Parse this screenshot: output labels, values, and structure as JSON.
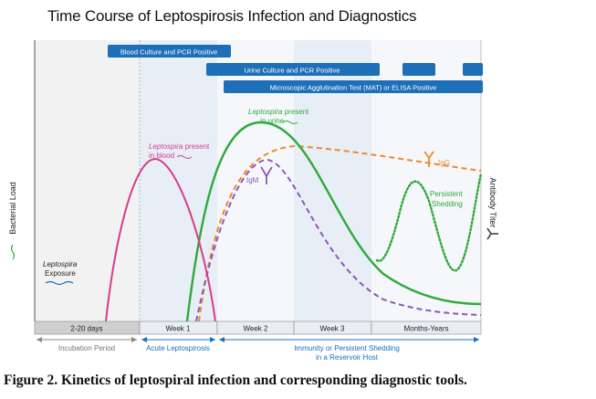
{
  "title": "Time Course of Leptospirosis Infection and Diagnostics",
  "caption": "Figure 2.  Kinetics of leptospiral infection and corresponding diagnostic tools.",
  "axes": {
    "left_label": "Bacterial Load",
    "right_label": "Antibody Titer"
  },
  "timeline": {
    "segments": [
      "2-20 days",
      "Week 1",
      "Week 2",
      "Week 3",
      "Months-Years"
    ]
  },
  "phases": {
    "incubation": "Incubation Period",
    "acute": "Acute Leptospirosis",
    "immunity_line1": "Immunity or Persistent Shedding",
    "immunity_line2": "in a Reservoir Host"
  },
  "diagnostics": {
    "blood_culture": "Blood Culture and PCR Positive",
    "urine_culture": "Urine Culture and PCR Positive",
    "mat_elisa": "Microscopic Agglutination Test (MAT) or ELISA Positive"
  },
  "annotations": {
    "blood_italic": "Leptospira",
    "blood_rest": " present",
    "blood_line2": "in blood",
    "urine_italic": "Leptospira",
    "urine_rest": " present",
    "urine_line2": "in urine",
    "igm": "IgM",
    "igg": "IgG",
    "shedding_line1": "Persistent",
    "shedding_line2": "Shedding",
    "exposure_line1": "Leptospira",
    "exposure_line2": "Exposure"
  },
  "colors": {
    "blood": "#d63d8c",
    "urine": "#2eaa3a",
    "igm": "#8a5bb5",
    "igg": "#ee8a2a",
    "bar": "#1d6fb8",
    "phase_text": "#1d6fb8",
    "incubation_text": "#777777"
  }
}
